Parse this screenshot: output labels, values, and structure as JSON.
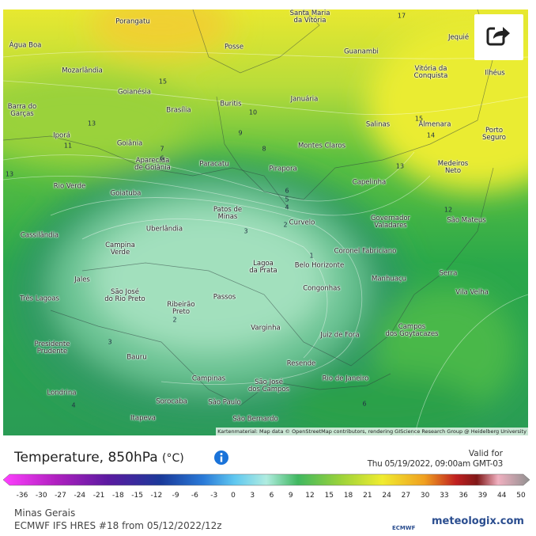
{
  "header": {
    "title": "Temperature, 850hPa",
    "unit": "(°C)",
    "valid_label": "Valid for",
    "valid_time": "Thu 05/19/2022, 09:00am GMT-03"
  },
  "map": {
    "cities": [
      "Porangatu",
      "Santa Maria\nda Vitória",
      "Jequié",
      "Posse",
      "Guanambi",
      "Água Boa",
      "Mozarlândia",
      "Vitória da\nConquista",
      "Ilhéus",
      "Goianésia",
      "Brasília",
      "Buritis",
      "Januária",
      "Barra do\nGarças",
      "Salinas",
      "Almenara",
      "Porto Seguro",
      "Iporá",
      "Goiânia",
      "Montes Claros",
      "Aparecida\nde Goiânia",
      "Paracatu",
      "Pirapora",
      "Medeiros\nNeto",
      "Capelinha",
      "Rio Verde",
      "Goiatuba",
      "Patos de\nMinas",
      "Governador\nValadares",
      "São Mateus",
      "Uberlândia",
      "Curvelo",
      "Cassilândia",
      "Campina\nVerde",
      "Coronel Fabriciano",
      "Lagoa\nda Prata",
      "Belo Horizonte",
      "Serra",
      "Jales",
      "Manhuaçu",
      "São José\ndo Rio Preto",
      "Congonhas",
      "Vila Velha",
      "Três Lagoas",
      "Passos",
      "Ribeirão\nPreto",
      "Varginha",
      "Campos\ndos Goytacazes",
      "Juiz de Fora",
      "Presidente\nPrudente",
      "Bauru",
      "Resende",
      "Campinas",
      "São José\ndos Campos",
      "Rio de Janeiro",
      "Londrina",
      "Sorocaba",
      "São Paulo",
      "Itapeva",
      "São Bernardo"
    ],
    "contour_labels": [
      15,
      13,
      11,
      7,
      6,
      10,
      9,
      8,
      13,
      13,
      15,
      14,
      12,
      17,
      6,
      5,
      4,
      3,
      2,
      1,
      2,
      3,
      4,
      6
    ],
    "attribution": "Kartenmaterial: Map data © OpenStreetMap contributors, rendering GIScience Research Group @ Heidelberg University"
  },
  "legend": {
    "ticks": [
      -36,
      -30,
      -27,
      -24,
      -21,
      -18,
      -15,
      -12,
      -9,
      -6,
      -3,
      0,
      3,
      6,
      9,
      12,
      15,
      18,
      21,
      24,
      27,
      30,
      33,
      36,
      39,
      44,
      50
    ]
  },
  "footer": {
    "region": "Minas Gerais",
    "model": "ECMWF IFS HRES #18 from 05/12/2022/12z",
    "ecmwf": "ECMWF",
    "brand": "meteologix.com"
  }
}
